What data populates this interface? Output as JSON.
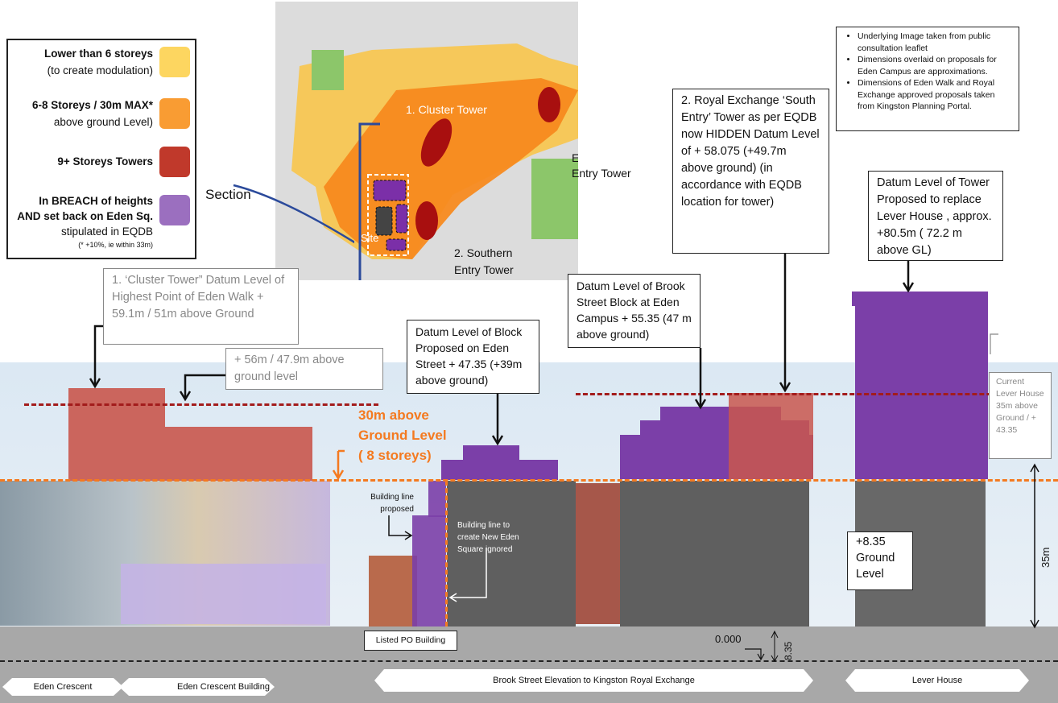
{
  "legend": {
    "items": [
      {
        "title": "Lower than 6 storeys",
        "sub": "(to create modulation)",
        "color": "#fdd660"
      },
      {
        "title": "6-8 Storeys / 30m MAX*",
        "sub": "above ground Level)",
        "color": "#f99c33"
      },
      {
        "title": "9+ Storeys Towers",
        "sub": "",
        "color": "#c0392b"
      },
      {
        "title": "In BREACH of heights",
        "title2": "AND set back on Eden Sq.",
        "sub": "stipulated in EQDB",
        "note": "(* +10%, ie within 33m)",
        "color": "#9b6fbf"
      }
    ]
  },
  "section_label": "Section",
  "map": {
    "cluster_tower": "1. Cluster Tower",
    "eastern": "Eastern",
    "eastern2": "Entry  Tower",
    "southern": "2. Southern",
    "southern2": "Entry  Tower",
    "site": "Site"
  },
  "notes": [
    "Underlying Image taken from public consultation leaflet",
    "Dimensions overlaid on proposals for Eden Campus are approximations.",
    "Dimensions of Eden Walk and Royal Exchange approved proposals taken from Kingston Planning Portal."
  ],
  "callouts": {
    "royal_exchange": "2. Royal Exchange ‘South Entry’ Tower as per EQDB now HIDDEN Datum Level  of + 58.075 (+49.7m above ground) (in accordance with EQDB location for tower)",
    "lever_tower": "Datum Level  of Tower Proposed  to replace Lever House , approx. +80.5m ( 72.2 m above GL)",
    "brook_street": "Datum Level  of Brook Street Block at Eden Campus  + 55.35 (47 m above ground)",
    "eden_street": "Datum Level  of Block Proposed on Eden Street + 47.35  (+39m above ground)",
    "cluster_tower": "1. ‘Cluster Tower” Datum Level of Highest Point of Eden Walk + 59.1m / 51m above Ground",
    "plus56": "+ 56m / 47.9m above ground level",
    "current_lever": "Current Lever House 35m above Ground / + 43.35",
    "ground_level": "+8.35 Ground Level",
    "building_line_proposed": "Building line proposed",
    "building_line_ignored": "Building line to create New Eden Square ignored",
    "listed_po": "Listed PO Building"
  },
  "thirty_m": {
    "line1": "30m above",
    "line2": "Ground Level",
    "line3": "( 8 storeys)"
  },
  "dimensions": {
    "datum": "0.000",
    "gl": "8.35",
    "h35": "35m"
  },
  "bottom_labels": [
    "Eden Crescent",
    "Eden Crescent Building",
    "Brook Street Elevation to Kingston Royal Exchange",
    "Lever House"
  ],
  "colors": {
    "orange_line": "#f47a20",
    "red_line": "#a31c1c",
    "purple": "#7b3fa8",
    "tower_red": "#c0392b"
  }
}
